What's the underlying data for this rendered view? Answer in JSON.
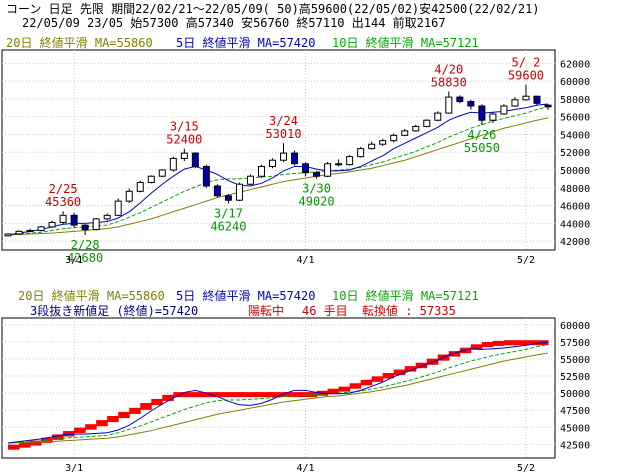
{
  "header": {
    "line1": "コーン 日足 先限 期間22/02/21～22/05/09( 50)高59600(22/05/02)安42500(22/02/21)",
    "line2": "22/05/09 23/05 始57300 高57340 安56760 終57110 出144 前取2167"
  },
  "colors": {
    "ma20": "#808000",
    "ma5": "#0000cc",
    "ma10": "#00aa00",
    "up": "#ffffff",
    "down": "#0000aa",
    "high_label": "#cc0000",
    "low_label": "#009900",
    "kagi_bull": "#ff0000",
    "kagi_bear": "#ff0000",
    "kagi_line": "#0000ff"
  },
  "legend_main": {
    "ma20": "20日 終値平滑 MA=55860",
    "ma5": "5日 終値平滑 MA=57420",
    "ma10": "10日 終値平滑 MA=57121"
  },
  "legend_sub": {
    "ma20": "20日 終値平滑 MA=55860",
    "ma5": "5日 終値平滑 MA=57420",
    "ma10": "10日 終値平滑 MA=57121"
  },
  "sub_info": {
    "label": "3段抜き新値足 (終値)=57420",
    "state": "陽転中",
    "count": "46 手目",
    "switch": "転換値 : 57335"
  },
  "chart_data": [
    {
      "type": "candlestick",
      "ylim": [
        41000,
        63500
      ],
      "yticks": [
        "62000",
        "60000",
        "58000",
        "56000",
        "54000",
        "52000",
        "50000",
        "48000",
        "46000",
        "44000",
        "42000"
      ],
      "xticks": [
        "3/1",
        "4/1",
        "5/2"
      ],
      "candles": [
        [
          42600,
          42900,
          42500,
          42800
        ],
        [
          42800,
          43200,
          42700,
          43100
        ],
        [
          43100,
          43400,
          43000,
          43200
        ],
        [
          43200,
          43700,
          43100,
          43600
        ],
        [
          43600,
          44300,
          43500,
          44100
        ],
        [
          44100,
          45360,
          43900,
          44900
        ],
        [
          44900,
          45200,
          43500,
          43800
        ],
        [
          43800,
          43900,
          42680,
          43300
        ],
        [
          43300,
          44600,
          43200,
          44500
        ],
        [
          44500,
          45100,
          44300,
          44900
        ],
        [
          44900,
          46800,
          44800,
          46500
        ],
        [
          46500,
          47900,
          46300,
          47600
        ],
        [
          47600,
          48800,
          47500,
          48600
        ],
        [
          48600,
          49400,
          48500,
          49300
        ],
        [
          49300,
          50100,
          49200,
          50000
        ],
        [
          50000,
          51500,
          49800,
          51300
        ],
        [
          51300,
          52400,
          51000,
          51900
        ],
        [
          51900,
          52000,
          50200,
          50400
        ],
        [
          50400,
          50600,
          48000,
          48200
        ],
        [
          48200,
          48400,
          46900,
          47100
        ],
        [
          47100,
          47300,
          46240,
          46600
        ],
        [
          46600,
          48600,
          46500,
          48400
        ],
        [
          48400,
          49500,
          48300,
          49300
        ],
        [
          49300,
          50600,
          49100,
          50400
        ],
        [
          50400,
          51300,
          50200,
          51100
        ],
        [
          51100,
          53010,
          50900,
          51900
        ],
        [
          51900,
          52200,
          50500,
          50700
        ],
        [
          50700,
          50900,
          49300,
          49700
        ],
        [
          49700,
          49900,
          49020,
          49300
        ],
        [
          49300,
          50900,
          49200,
          50700
        ],
        [
          50700,
          51200,
          50400,
          50600
        ],
        [
          50600,
          51700,
          50500,
          51500
        ],
        [
          51500,
          52600,
          51400,
          52400
        ],
        [
          52400,
          53200,
          52300,
          52900
        ],
        [
          52900,
          53500,
          52700,
          53300
        ],
        [
          53300,
          54100,
          53100,
          53900
        ],
        [
          53900,
          54600,
          53800,
          54400
        ],
        [
          54400,
          55100,
          54300,
          54900
        ],
        [
          54900,
          55700,
          54800,
          55600
        ],
        [
          55600,
          56600,
          55500,
          56400
        ],
        [
          56400,
          58830,
          56300,
          58200
        ],
        [
          58200,
          58400,
          57500,
          57700
        ],
        [
          57700,
          57900,
          56800,
          57200
        ],
        [
          57200,
          57400,
          55050,
          55600
        ],
        [
          55600,
          56500,
          55300,
          56300
        ],
        [
          56300,
          57400,
          56200,
          57200
        ],
        [
          57200,
          58200,
          57100,
          57900
        ],
        [
          57900,
          59600,
          57800,
          58300
        ],
        [
          58300,
          58300,
          57300,
          57500
        ],
        [
          57300,
          57340,
          56760,
          57110
        ]
      ],
      "ma5": [
        42700,
        42900,
        43100,
        43300,
        43600,
        43900,
        44000,
        44000,
        44100,
        44200,
        44600,
        45300,
        46300,
        47400,
        48400,
        49300,
        50100,
        50400,
        50000,
        49500,
        48800,
        48300,
        48200,
        48500,
        49100,
        49900,
        50400,
        50400,
        50100,
        49900,
        49900,
        50000,
        50400,
        51000,
        51600,
        52400,
        53000,
        53600,
        54200,
        54800,
        55600,
        56100,
        56500,
        56400,
        56500,
        56600,
        56800,
        57000,
        57300,
        57420
      ],
      "ma10": [
        42700,
        42800,
        42900,
        43000,
        43200,
        43400,
        43500,
        43600,
        43700,
        43800,
        44200,
        44700,
        45200,
        45800,
        46400,
        47000,
        47600,
        48100,
        48600,
        48900,
        49000,
        49000,
        49100,
        49200,
        49300,
        49500,
        49600,
        49700,
        49800,
        49900,
        50000,
        50100,
        50300,
        50600,
        50900,
        51300,
        51700,
        52100,
        52600,
        53100,
        53700,
        54200,
        54700,
        55100,
        55500,
        55800,
        56100,
        56400,
        56800,
        57121
      ],
      "ma20": [
        42700,
        42750,
        42800,
        42850,
        42900,
        43000,
        43100,
        43200,
        43300,
        43400,
        43600,
        43900,
        44200,
        44500,
        44900,
        45300,
        45700,
        46100,
        46500,
        46900,
        47200,
        47500,
        47800,
        48100,
        48400,
        48700,
        48900,
        49100,
        49300,
        49500,
        49600,
        49800,
        50000,
        50200,
        50500,
        50800,
        51100,
        51500,
        51900,
        52300,
        52700,
        53100,
        53500,
        53900,
        54300,
        54700,
        55000,
        55300,
        55600,
        55860
      ]
    },
    {
      "type": "kagi",
      "ylim": [
        40500,
        61000
      ],
      "yticks": [
        "60000",
        "57500",
        "55000",
        "52500",
        "50000",
        "47500",
        "45000",
        "42500"
      ],
      "xticks": [
        "3/1",
        "4/1",
        "5/2"
      ],
      "steps": [
        42000,
        42300,
        42600,
        42900,
        43300,
        43800,
        44300,
        44800,
        45300,
        45900,
        46500,
        47100,
        47700,
        48400,
        49000,
        49600,
        50000,
        50000,
        50000,
        50000,
        50000,
        50000,
        50000,
        50000,
        50000,
        50000,
        50000,
        50000,
        50000,
        50200,
        50500,
        50800,
        51300,
        51800,
        52300,
        52800,
        53300,
        53800,
        54300,
        54900,
        55500,
        56000,
        56500,
        57000,
        57335,
        57500,
        57600,
        57600,
        57600,
        57600
      ]
    }
  ],
  "annotations_main": [
    {
      "date": "2/25",
      "value": "45360",
      "kind": "high"
    },
    {
      "date": "2/28",
      "value": "42680",
      "kind": "low"
    },
    {
      "date": "3/15",
      "value": "52400",
      "kind": "high"
    },
    {
      "date": "3/17",
      "value": "46240",
      "kind": "low"
    },
    {
      "date": "3/24",
      "value": "53010",
      "kind": "high"
    },
    {
      "date": "3/30",
      "value": "49020",
      "kind": "low"
    },
    {
      "date": "4/20",
      "value": "58830",
      "kind": "high"
    },
    {
      "date": "4/26",
      "value": "55050",
      "kind": "low"
    },
    {
      "date": "5/ 2",
      "value": "59600",
      "kind": "high"
    }
  ]
}
